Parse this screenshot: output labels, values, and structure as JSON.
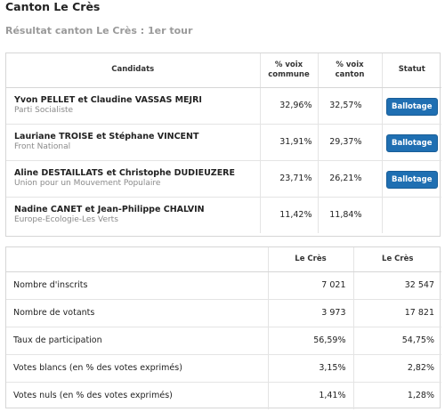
{
  "page": {
    "title": "Canton Le Crès",
    "subtitle": "Résultat canton Le Crès : 1er tour"
  },
  "candidates_table": {
    "headers": {
      "candidates": "Candidats",
      "pct_commune_line1": "% voix",
      "pct_commune_line2": "commune",
      "pct_canton_line1": "% voix",
      "pct_canton_line2": "canton",
      "status": "Statut"
    },
    "rows": [
      {
        "name": "Yvon PELLET et Claudine VASSAS MEJRI",
        "party": "Parti Socialiste",
        "pct_commune": "32,96%",
        "pct_canton": "32,57%",
        "status": "Ballotage"
      },
      {
        "name": "Lauriane TROISE et Stéphane VINCENT",
        "party": "Front National",
        "pct_commune": "31,91%",
        "pct_canton": "29,37%",
        "status": "Ballotage"
      },
      {
        "name": "Aline DESTAILLATS et Christophe DUDIEUZERE",
        "party": "Union pour un Mouvement Populaire",
        "pct_commune": "23,71%",
        "pct_canton": "26,21%",
        "status": "Ballotage"
      },
      {
        "name": "Nadine CANET et Jean-Philippe CHALVIN",
        "party": "Europe-Ecologie-Les Verts",
        "pct_commune": "11,42%",
        "pct_canton": "11,84%",
        "status": ""
      }
    ]
  },
  "stats_table": {
    "headers": {
      "col1": "Le Crès",
      "col2": "Le Crès"
    },
    "rows": [
      {
        "label": "Nombre d'inscrits",
        "v1": "7 021",
        "v2": "32 547"
      },
      {
        "label": "Nombre de votants",
        "v1": "3 973",
        "v2": "17 821"
      },
      {
        "label": "Taux de participation",
        "v1": "56,59%",
        "v2": "54,75%"
      },
      {
        "label": "Votes blancs (en % des votes exprimés)",
        "v1": "3,15%",
        "v2": "2,82%"
      },
      {
        "label": "Votes nuls (en % des votes exprimés)",
        "v1": "1,41%",
        "v2": "1,28%"
      }
    ]
  },
  "colors": {
    "button": "#1f6fb2",
    "subtitle": "#9a9a9a",
    "border": "#d6d6d6"
  }
}
